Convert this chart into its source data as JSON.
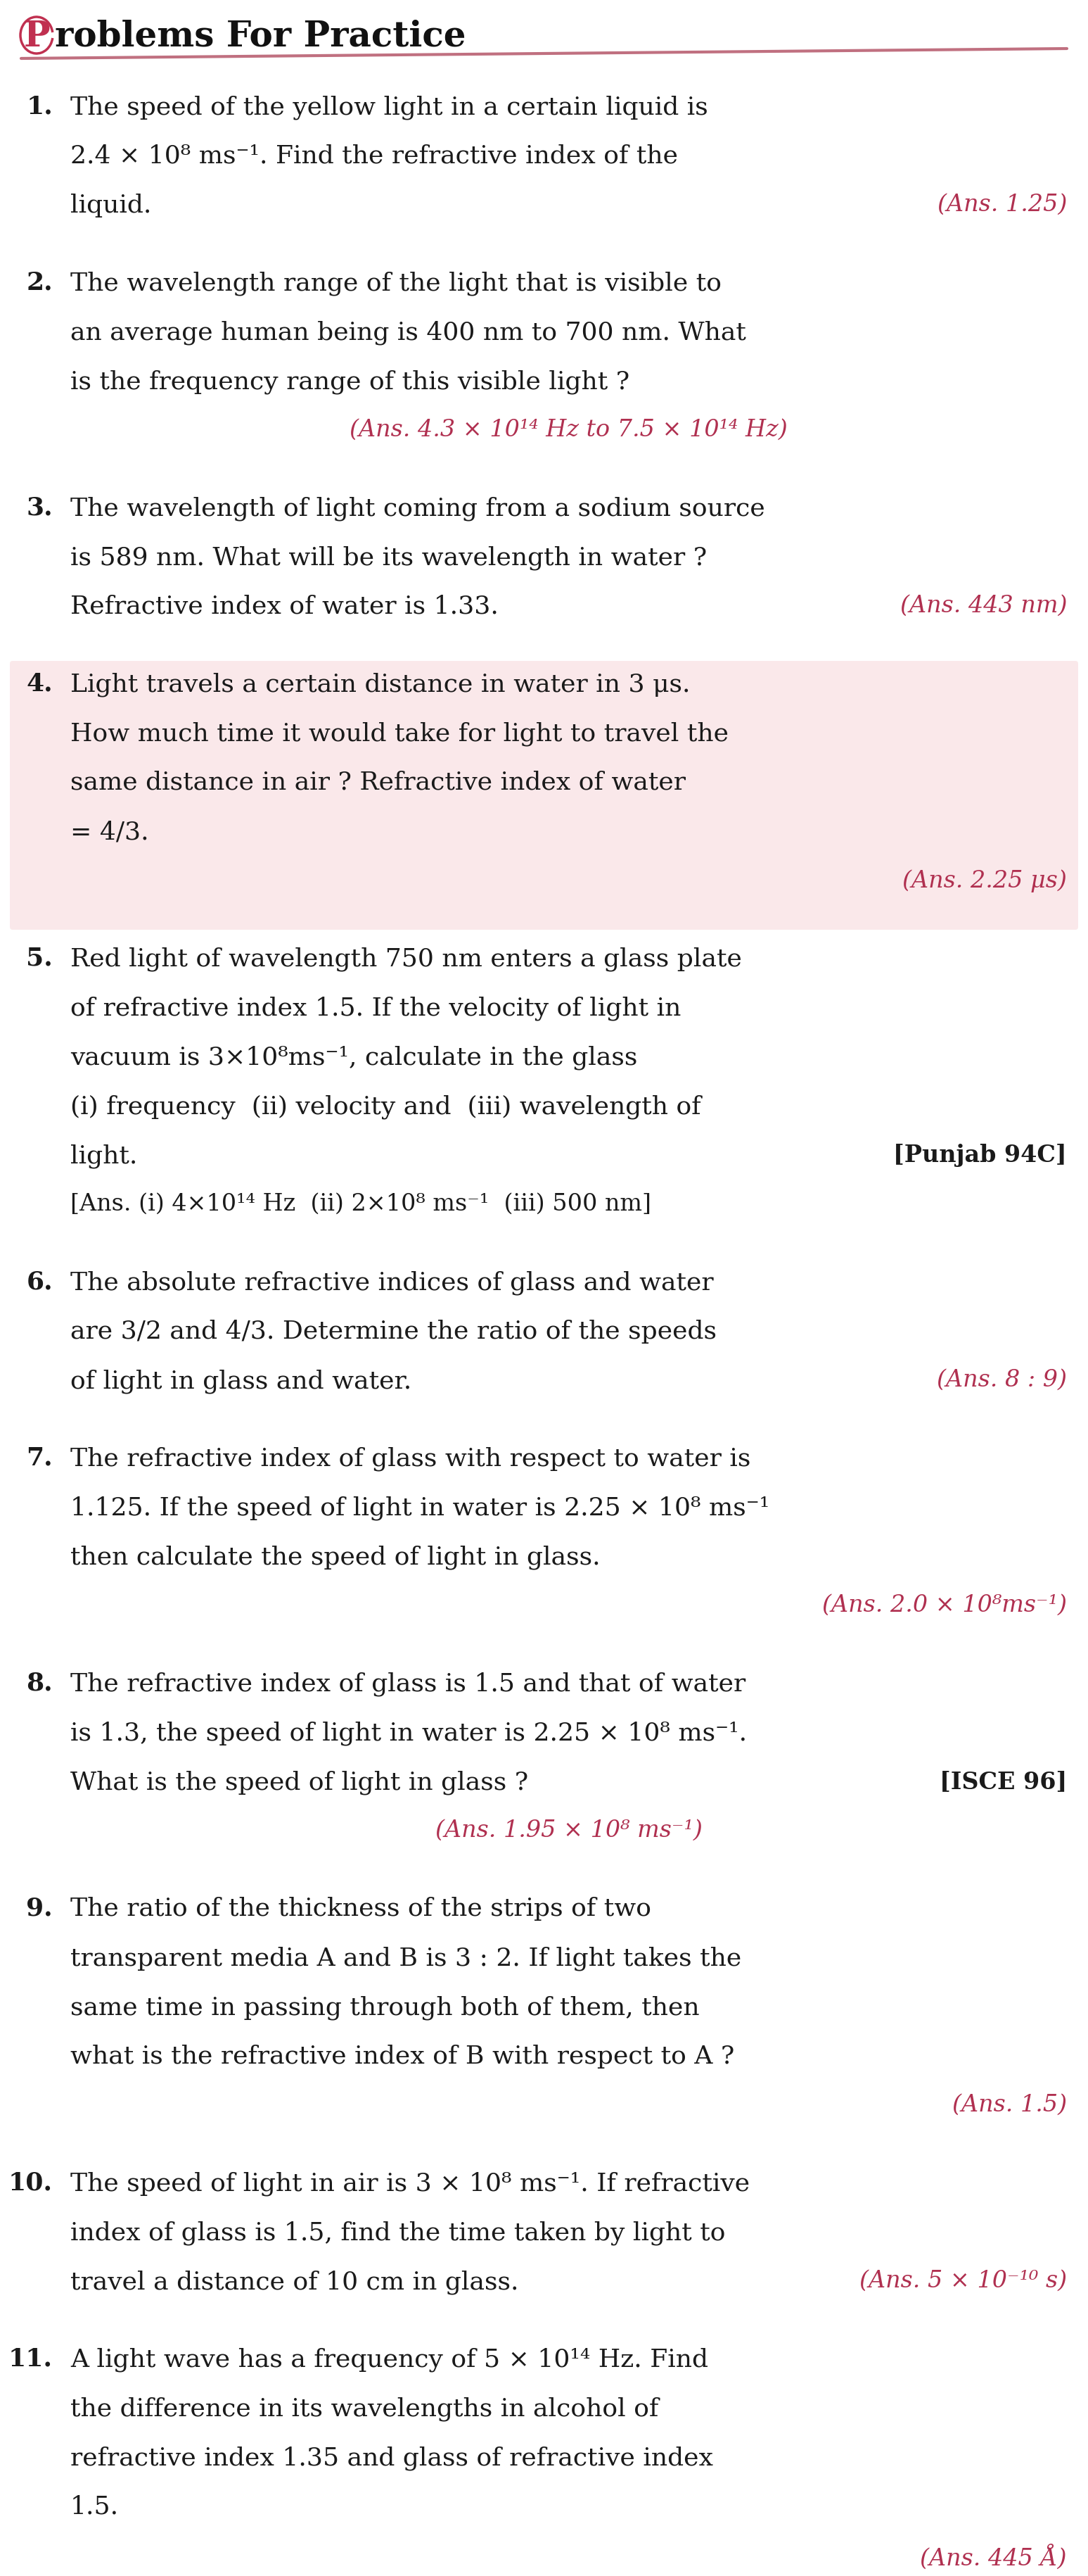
{
  "bg_color": "#ffffff",
  "ans_color": "#b03050",
  "text_color": "#1a1a1a",
  "num_color": "#8b1020",
  "title_underline_color": "#c07080",
  "problems": [
    {
      "num": "1.",
      "lines": [
        "The speed of the yellow light in a certain liquid is",
        "2.4 × 10⁸ ms⁻¹. Find the refractive index of the",
        "liquid."
      ],
      "ans": "(Ans. 1.25)",
      "ans_style": "right_last",
      "highlight": false,
      "tag": null
    },
    {
      "num": "2.",
      "lines": [
        "The wavelength range of the light that is visible to",
        "an average human being is 400 nm to 700 nm. What",
        "is the frequency range of this visible light ?"
      ],
      "ans": "(Ans. 4.3 × 10¹⁴ Hz to 7.5 × 10¹⁴ Hz)",
      "ans_style": "center_below",
      "highlight": false,
      "tag": null
    },
    {
      "num": "3.",
      "lines": [
        "The wavelength of light coming from a sodium source",
        "is 589 nm. What will be its wavelength in water ?",
        "Refractive index of water is 1.33."
      ],
      "ans": "(Ans. 443 nm)",
      "ans_style": "right_lastline",
      "highlight": false,
      "tag": null
    },
    {
      "num": "4.",
      "lines": [
        "Light travels a certain distance in water in 3 μs.",
        "How much time it would take for light to travel the",
        "same distance in air ? Refractive index of water",
        "= 4/3."
      ],
      "ans": "(Ans. 2.25 μs)",
      "ans_style": "right_below",
      "highlight": true,
      "tag": null
    },
    {
      "num": "5.",
      "lines": [
        "Red light of wavelength 750 nm enters a glass plate",
        "of refractive index 1.5. If the velocity of light in",
        "vacuum is 3×10⁸ms⁻¹, calculate in the glass",
        "(i) frequency  (ii) velocity and  (iii) wavelength of",
        "light."
      ],
      "ans": "[Ans. (i) 4×10¹⁴ Hz  (ii) 2×10⁸ ms⁻¹  (iii) 500 nm]",
      "ans_style": "left_below",
      "ans_color_override": "#1a1a1a",
      "highlight": false,
      "tag": "[Punjab 94C]",
      "tag_line": 4
    },
    {
      "num": "6.",
      "lines": [
        "The absolute refractive indices of glass and water",
        "are 3/2 and 4/3. Determine the ratio of the speeds",
        "of light in glass and water."
      ],
      "ans": "(Ans. 8 : 9)",
      "ans_style": "right_lastline",
      "highlight": false,
      "tag": null
    },
    {
      "num": "7.",
      "lines": [
        "The refractive index of glass with respect to water is",
        "1.125. If the speed of light in water is 2.25 × 10⁸ ms⁻¹",
        "then calculate the speed of light in glass."
      ],
      "ans": "(Ans. 2.0 × 10⁸ms⁻¹)",
      "ans_style": "right_below",
      "highlight": false,
      "tag": null
    },
    {
      "num": "8.",
      "lines": [
        "The refractive index of glass is 1.5 and that of water",
        "is 1.3, the speed of light in water is 2.25 × 10⁸ ms⁻¹.",
        "What is the speed of light in glass ?"
      ],
      "ans": "(Ans. 1.95 × 10⁸ ms⁻¹)",
      "ans_style": "center_below",
      "highlight": false,
      "tag": "[ISCE 96]",
      "tag_line": 2
    },
    {
      "num": "9.",
      "lines": [
        "The ratio of the thickness of the strips of two",
        "transparent media A and B is 3 : 2. If light takes the",
        "same time in passing through both of them, then",
        "what is the refractive index of B with respect to A ?"
      ],
      "ans": "(Ans. 1.5)",
      "ans_style": "right_below",
      "highlight": false,
      "tag": null
    },
    {
      "num": "10.",
      "lines": [
        "The speed of light in air is 3 × 10⁸ ms⁻¹. If refractive",
        "index of glass is 1.5, find the time taken by light to",
        "travel a distance of 10 cm in glass."
      ],
      "ans": "(Ans. 5 × 10⁻¹⁰ s)",
      "ans_style": "right_lastline",
      "highlight": false,
      "tag": null
    },
    {
      "num": "11.",
      "lines": [
        "A light wave has a frequency of 5 × 10¹⁴ Hz. Find",
        "the difference in its wavelengths in alcohol of",
        "refractive index 1.35 and glass of refractive index",
        "1.5."
      ],
      "ans": "(Ans. 445 Å)",
      "ans_style": "right_below",
      "highlight": false,
      "tag": null
    }
  ]
}
